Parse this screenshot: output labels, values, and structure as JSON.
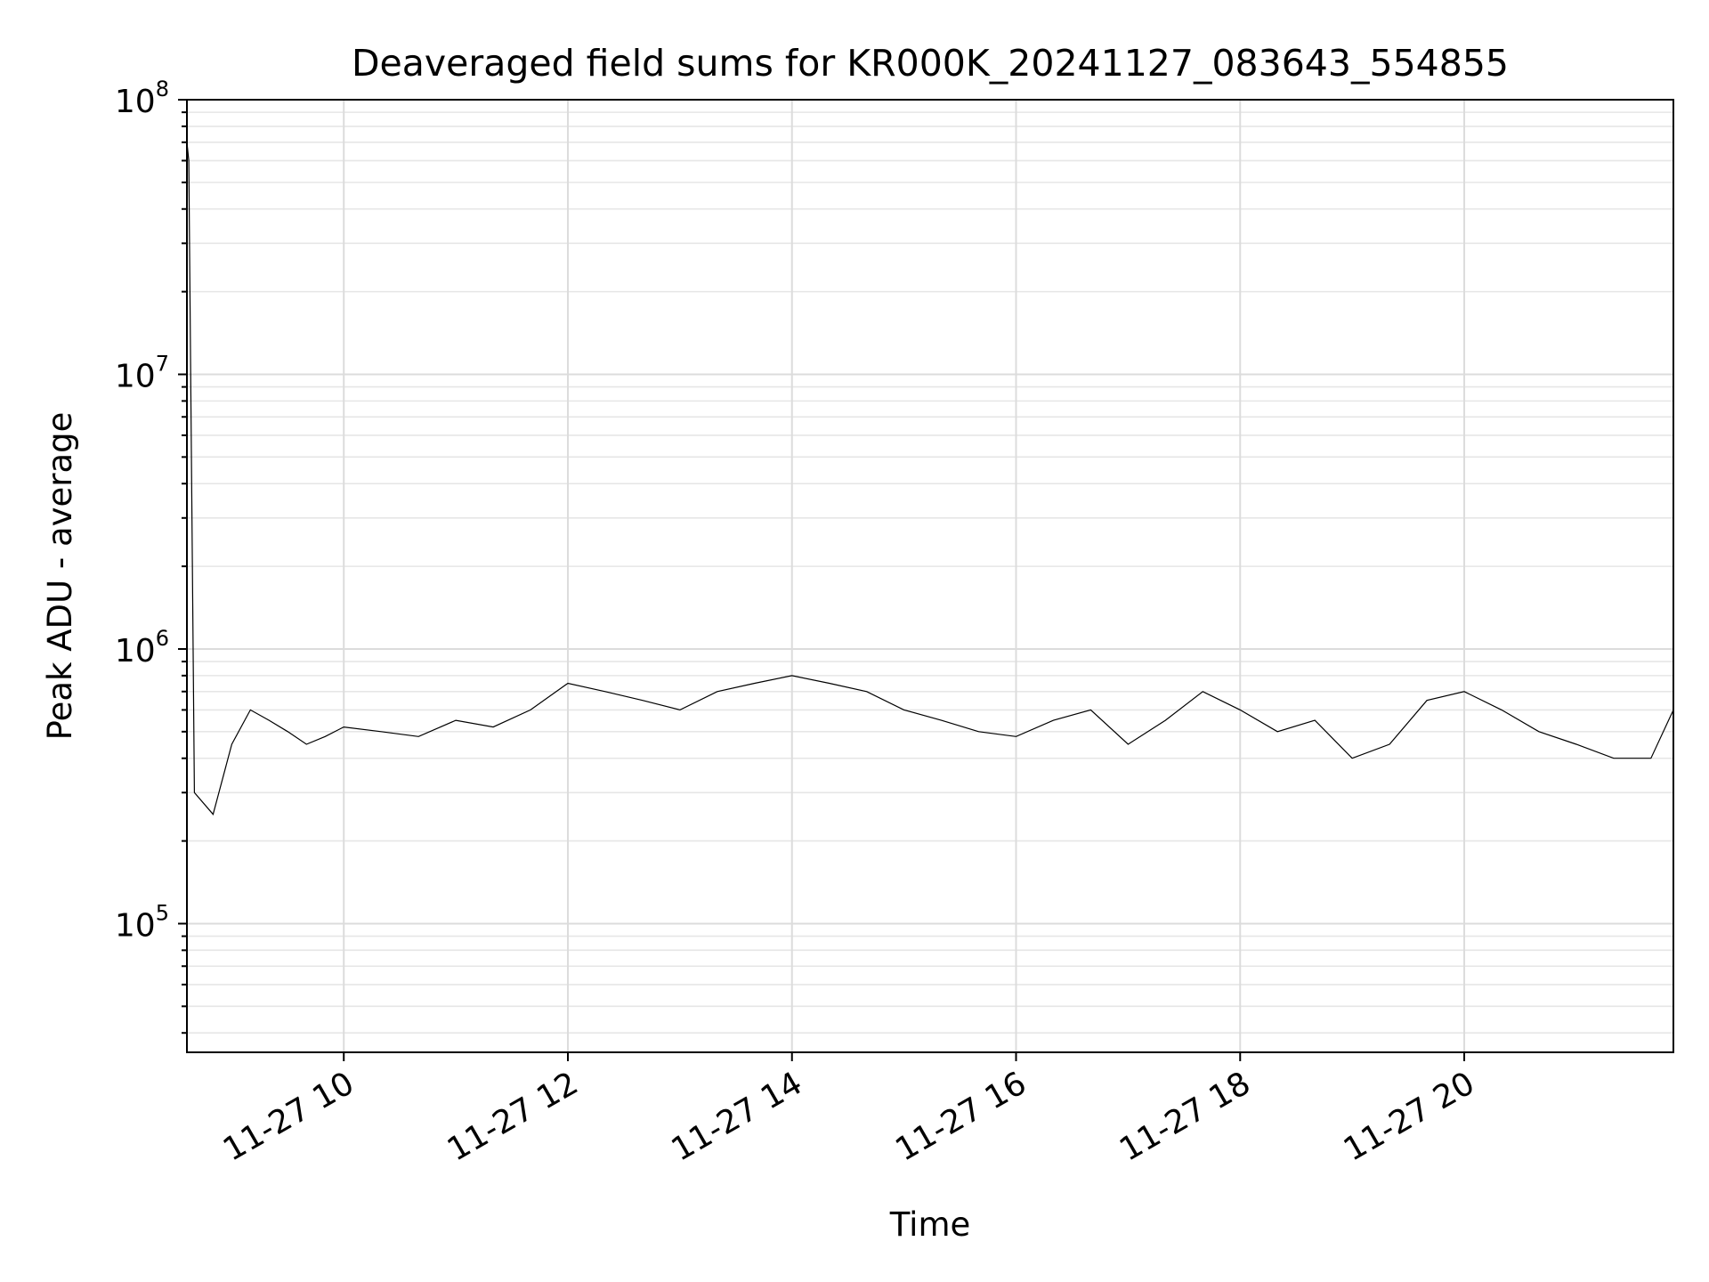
{
  "chart_data": {
    "type": "line",
    "title": "Deaveraged field sums for KR000K_20241127_083643_554855",
    "xlabel": "Time",
    "ylabel": "Peak ADU - average",
    "y_scale": "log",
    "ylim": [
      34000,
      100000000
    ],
    "xlim": [
      "2024-11-27 08:36",
      "2024-11-27 21:52"
    ],
    "grid": true,
    "line_color": "#000000",
    "y_ticks": [
      {
        "value": 100000,
        "base": "10",
        "exp": "5"
      },
      {
        "value": 1000000,
        "base": "10",
        "exp": "6"
      },
      {
        "value": 10000000,
        "base": "10",
        "exp": "7"
      },
      {
        "value": 100000000,
        "base": "10",
        "exp": "8"
      }
    ],
    "x_ticks": [
      {
        "value": "2024-11-27 10:00",
        "label": "11-27 10"
      },
      {
        "value": "2024-11-27 12:00",
        "label": "11-27 12"
      },
      {
        "value": "2024-11-27 14:00",
        "label": "11-27 14"
      },
      {
        "value": "2024-11-27 16:00",
        "label": "11-27 16"
      },
      {
        "value": "2024-11-27 18:00",
        "label": "11-27 18"
      },
      {
        "value": "2024-11-27 20:00",
        "label": "11-27 20"
      }
    ],
    "series": [
      {
        "x": [
          "2024-11-27 08:36",
          "2024-11-27 08:37",
          "2024-11-27 08:40",
          "2024-11-27 08:50",
          "2024-11-27 09:00",
          "2024-11-27 09:10",
          "2024-11-27 09:20",
          "2024-11-27 09:30",
          "2024-11-27 09:40",
          "2024-11-27 09:50",
          "2024-11-27 10:00",
          "2024-11-27 10:20",
          "2024-11-27 10:40",
          "2024-11-27 11:00",
          "2024-11-27 11:20",
          "2024-11-27 11:40",
          "2024-11-27 12:00",
          "2024-11-27 12:20",
          "2024-11-27 12:40",
          "2024-11-27 13:00",
          "2024-11-27 13:20",
          "2024-11-27 13:40",
          "2024-11-27 14:00",
          "2024-11-27 14:20",
          "2024-11-27 14:40",
          "2024-11-27 15:00",
          "2024-11-27 15:20",
          "2024-11-27 15:40",
          "2024-11-27 16:00",
          "2024-11-27 16:20",
          "2024-11-27 16:40",
          "2024-11-27 17:00",
          "2024-11-27 17:20",
          "2024-11-27 17:40",
          "2024-11-27 18:00",
          "2024-11-27 18:20",
          "2024-11-27 18:40",
          "2024-11-27 19:00",
          "2024-11-27 19:20",
          "2024-11-27 19:40",
          "2024-11-27 20:00",
          "2024-11-27 20:20",
          "2024-11-27 20:40",
          "2024-11-27 21:00",
          "2024-11-27 21:20",
          "2024-11-27 21:40",
          "2024-11-27 21:52"
        ],
        "y": [
          70000000,
          60000000,
          300000,
          250000,
          450000,
          600000,
          550000,
          500000,
          450000,
          480000,
          520000,
          500000,
          480000,
          550000,
          520000,
          600000,
          750000,
          700000,
          650000,
          600000,
          700000,
          750000,
          800000,
          750000,
          700000,
          600000,
          550000,
          500000,
          480000,
          550000,
          600000,
          450000,
          550000,
          700000,
          600000,
          500000,
          550000,
          400000,
          450000,
          650000,
          700000,
          600000,
          500000,
          450000,
          400000,
          400000,
          600000
        ]
      }
    ]
  }
}
